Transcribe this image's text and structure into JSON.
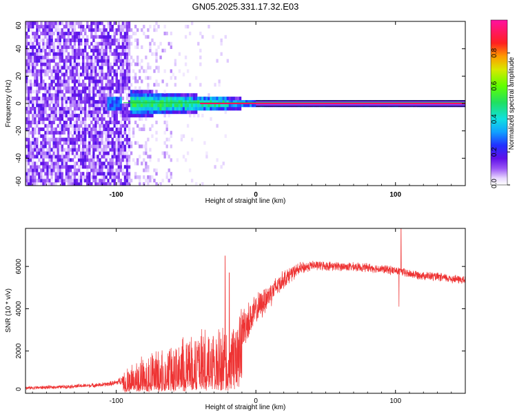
{
  "chart_data": [
    {
      "type": "heatmap",
      "title": "GN05.2025.331.17.32.E03",
      "xlabel": "Height of straight line (km)",
      "ylabel": "Frequency (Hz)",
      "xlim": [
        -165,
        150
      ],
      "ylim": [
        -60,
        60
      ],
      "x_ticks": [
        -100,
        0,
        100
      ],
      "y_ticks": [
        -60,
        -40,
        -20,
        0,
        20,
        40,
        60
      ],
      "x_tick_labels": [
        "-100",
        "0",
        "100"
      ],
      "y_tick_labels": [
        "-60",
        "-40",
        "-20",
        "0",
        "20",
        "40",
        "60"
      ],
      "colorbar": {
        "label": "Normalized spectral amplitude",
        "range": [
          0,
          1
        ],
        "ticks": [
          0.0,
          0.2,
          0.4,
          0.6,
          0.8
        ],
        "tick_labels": [
          "0.0",
          "0.2",
          "0.4",
          "0.6",
          "0.8"
        ]
      },
      "features": {
        "noise_region_x": [
          -165,
          -90
        ],
        "signal_line_freq_hz": 0,
        "signal_band_start_x": -95,
        "lines_hz": [
          -2,
          0,
          2
        ]
      }
    },
    {
      "type": "line",
      "xlabel": "Height of straight line (km)",
      "ylabel": "SNR (10 * v/v)",
      "xlim": [
        -165,
        150
      ],
      "ylim": [
        0,
        7800
      ],
      "x_ticks": [
        -100,
        0,
        100
      ],
      "y_ticks": [
        0,
        2000,
        4000,
        6000
      ],
      "x_tick_labels": [
        "-100",
        "0",
        "100"
      ],
      "y_tick_labels": [
        "0",
        "2000",
        "4000",
        "6000"
      ],
      "series": [
        {
          "name": "SNR",
          "color": "#ee3333",
          "envelope": {
            "x": [
              -165,
              -140,
              -110,
              -100,
              -95,
              -90,
              -80,
              -70,
              -60,
              -50,
              -40,
              -30,
              -25,
              -20,
              -15,
              -10,
              0,
              10,
              20,
              30,
              40,
              60,
              80,
              100,
              110,
              130,
              150
            ],
            "mean": [
              250,
              300,
              400,
              500,
              650,
              800,
              1100,
              1300,
              1500,
              1650,
              1800,
              2000,
              2000,
              2100,
              2500,
              3000,
              3900,
              4700,
              5400,
              5850,
              6050,
              6000,
              5950,
              5800,
              5650,
              5500,
              5350
            ],
            "spread": [
              80,
              80,
              100,
              120,
              250,
              500,
              700,
              800,
              900,
              1000,
              1000,
              1100,
              1100,
              1200,
              1200,
              1000,
              700,
              600,
              400,
              300,
              220,
              200,
              200,
              200,
              200,
              200,
              200
            ]
          },
          "spikes": [
            {
              "x": -22,
              "y": 6500
            },
            {
              "x": -19,
              "y": 5700
            },
            {
              "x": 104,
              "y": 7800
            },
            {
              "x": 102.5,
              "y": 4100
            }
          ]
        }
      ]
    }
  ]
}
